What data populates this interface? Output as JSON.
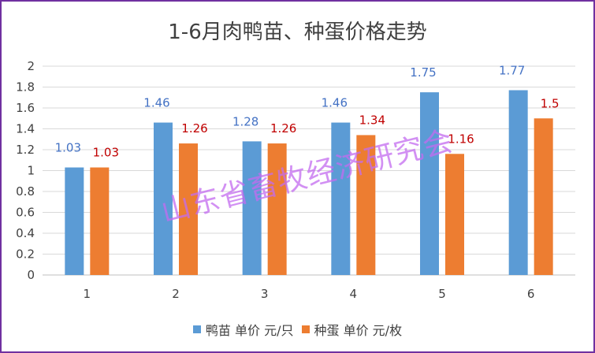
{
  "chart_data": {
    "type": "bar",
    "title": "1-6月肉鸭苗、种蛋价格走势",
    "categories": [
      "1",
      "2",
      "3",
      "4",
      "5",
      "6"
    ],
    "series": [
      {
        "name": "鸭苗 单价 元/只",
        "color": "#5b9bd5",
        "label_color": "#4472c4",
        "values": [
          1.03,
          1.46,
          1.28,
          1.46,
          1.75,
          1.77
        ]
      },
      {
        "name": "种蛋 单价 元/枚",
        "color": "#ed7d31",
        "label_color": "#c00000",
        "values": [
          1.03,
          1.26,
          1.26,
          1.34,
          1.16,
          1.5
        ]
      }
    ],
    "ylim": [
      0,
      2
    ],
    "yticks": [
      "0",
      "0.2",
      "0.4",
      "0.6",
      "0.8",
      "1",
      "1.2",
      "1.4",
      "1.6",
      "1.8",
      "2"
    ],
    "grid": true,
    "legend_position": "bottom"
  },
  "watermark": "山东省畜牧经济研究会"
}
